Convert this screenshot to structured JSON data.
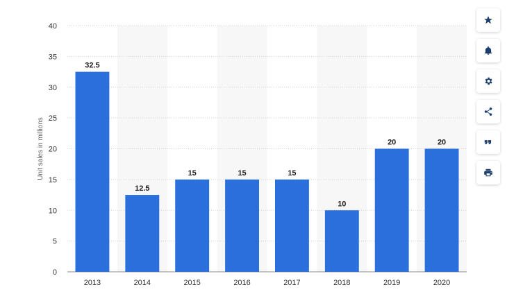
{
  "chart_data": {
    "type": "bar",
    "categories": [
      "2013",
      "2014",
      "2015",
      "2016",
      "2017",
      "2018",
      "2019",
      "2020"
    ],
    "values": [
      32.5,
      12.5,
      15,
      15,
      15,
      10,
      20,
      20
    ],
    "data_labels": [
      "32.5",
      "12.5",
      "15",
      "15",
      "15",
      "10",
      "20",
      "20"
    ],
    "title": "",
    "xlabel": "",
    "ylabel": "Unit sales in millions",
    "ylim": [
      0,
      40
    ],
    "yticks": [
      "0",
      "5",
      "10",
      "15",
      "20",
      "25",
      "30",
      "35",
      "40"
    ],
    "grid": true,
    "legend": "none",
    "bar_color": "#2a6fdb"
  },
  "toolbar": {
    "buttons": [
      {
        "icon": "star-icon"
      },
      {
        "icon": "bell-icon"
      },
      {
        "icon": "gear-icon"
      },
      {
        "icon": "share-icon"
      },
      {
        "icon": "quote-icon"
      },
      {
        "icon": "print-icon"
      }
    ]
  }
}
